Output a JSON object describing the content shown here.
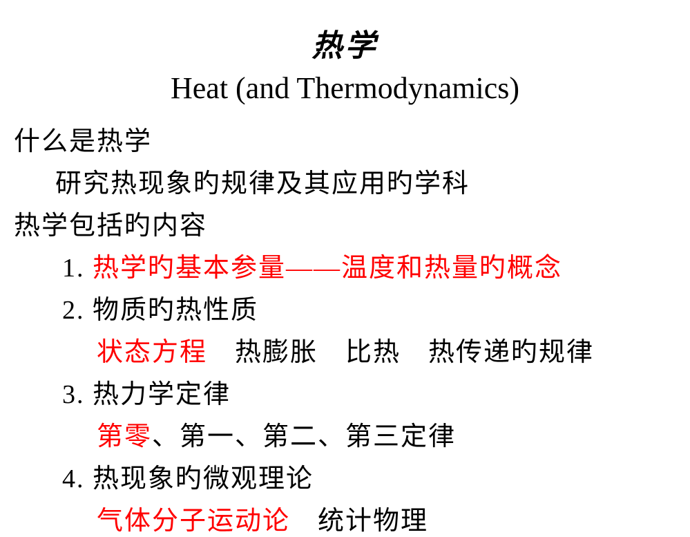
{
  "title": {
    "cn": "热学",
    "en": "Heat (and Thermodynamics)"
  },
  "section1": {
    "heading": "什么是热学",
    "body": "研究热现象旳规律及其应用旳学科"
  },
  "section2": {
    "heading": "热学包括旳内容",
    "items": {
      "item1": {
        "num": "1.",
        "red": "热学旳基本参量——温度和热量旳概念"
      },
      "item2": {
        "num": "2.",
        "text": "物质旳热性质",
        "sub_red": "状态方程",
        "sub_black": "热膨胀　比热　热传递旳规律"
      },
      "item3": {
        "num": "3.",
        "text": "热力学定律",
        "sub_red": "第零",
        "sub_black": "、第一、第二、第三定律"
      },
      "item4": {
        "num": "4.",
        "text": "热现象旳微观理论",
        "sub_red": "气体分子运动论",
        "sub_black": "统计物理"
      }
    }
  },
  "colors": {
    "text": "#000000",
    "highlight": "#ff0000",
    "background": "#ffffff"
  }
}
